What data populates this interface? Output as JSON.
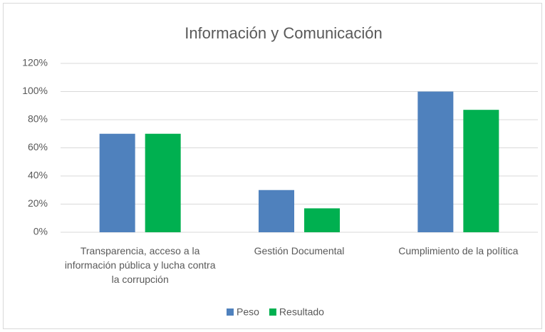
{
  "chart_data": {
    "type": "bar",
    "title": "Información y Comunicación",
    "categories": [
      "Transparencia, acceso a la información pública y lucha contra la corrupción",
      "Gestión Documental",
      "Cumplimiento de la política"
    ],
    "series": [
      {
        "name": "Peso",
        "color": "#4f81bd",
        "values": [
          70,
          30,
          100
        ]
      },
      {
        "name": "Resultado",
        "color": "#00b050",
        "values": [
          70,
          17,
          87
        ]
      }
    ],
    "ylim": [
      0,
      120
    ],
    "yticks": [
      {
        "value": 0,
        "label": "0%"
      },
      {
        "value": 20,
        "label": "20%"
      },
      {
        "value": 40,
        "label": "40%"
      },
      {
        "value": 60,
        "label": "60%"
      },
      {
        "value": 80,
        "label": "80%"
      },
      {
        "value": 100,
        "label": "100%"
      },
      {
        "value": 120,
        "label": "120%"
      }
    ],
    "grid": true,
    "legend": "bottom"
  }
}
